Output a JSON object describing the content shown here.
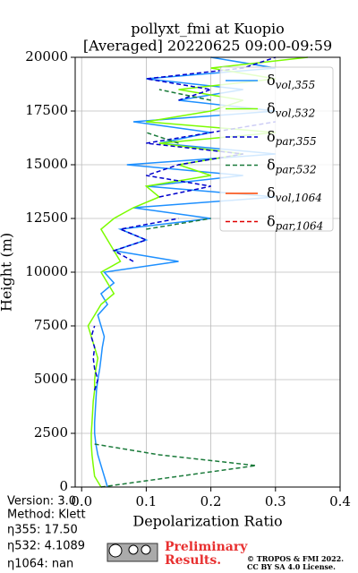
{
  "chart_data": {
    "type": "profile",
    "title": "pollyxt_fmi at Kuopio",
    "subtitle": "[Averaged] 20220625 09:00-09:59",
    "xlabel": "Depolarization Ratio",
    "ylabel": "Height (m)",
    "xlim": [
      -0.01,
      0.4
    ],
    "ylim": [
      0,
      20000
    ],
    "xticks": [
      {
        "value": 0,
        "label": "0.0"
      },
      0.1,
      0.2,
      0.3,
      0.4
    ],
    "yticks": [
      0,
      2500,
      5000,
      7500,
      10000,
      12500,
      15000,
      17500,
      20000
    ],
    "grid": true,
    "legend": "upper right",
    "heights": [
      0,
      500,
      1000,
      1500,
      2000,
      2500,
      3000,
      3500,
      4000,
      4500,
      5000,
      5500,
      6000,
      6500,
      7000,
      7500,
      8000,
      8500,
      9000,
      9500,
      10000,
      10500,
      11000,
      11500,
      12000,
      12500,
      13000,
      13500,
      14000,
      14500,
      15000,
      15500,
      16000,
      16500,
      17000,
      17500,
      18000,
      18500,
      19000,
      19500,
      20000
    ],
    "series": [
      {
        "name": "δvol,355",
        "color": "#1e90ff",
        "dash": false,
        "values": [
          0.04,
          0.035,
          0.03,
          0.025,
          0.022,
          0.02,
          0.02,
          0.021,
          0.022,
          0.023,
          0.025,
          0.028,
          0.03,
          0.032,
          0.035,
          0.03,
          0.025,
          0.04,
          0.03,
          0.05,
          0.035,
          0.15,
          0.05,
          0.1,
          0.06,
          0.2,
          0.08,
          0.3,
          0.1,
          0.25,
          0.07,
          0.3,
          0.12,
          0.2,
          0.08,
          0.3,
          0.15,
          0.25,
          0.1,
          0.3,
          0.2
        ]
      },
      {
        "name": "δvol,532",
        "color": "#7cfc00",
        "dash": false,
        "values": [
          0.03,
          0.02,
          0.018,
          0.016,
          0.015,
          0.015,
          0.016,
          0.017,
          0.018,
          0.02,
          0.02,
          0.022,
          0.025,
          0.02,
          0.015,
          0.01,
          0.02,
          0.03,
          0.05,
          0.04,
          0.03,
          0.06,
          0.05,
          0.04,
          0.03,
          0.05,
          0.08,
          0.12,
          0.1,
          0.2,
          0.15,
          0.25,
          0.12,
          0.3,
          0.1,
          0.2,
          0.25,
          0.15,
          0.3,
          0.2,
          0.35
        ]
      },
      {
        "name": "δpar,355",
        "color": "#0000cd",
        "dash": true,
        "values": [
          null,
          null,
          null,
          null,
          null,
          null,
          null,
          null,
          null,
          0.02,
          0.025,
          0.02,
          0.018,
          0.02,
          0.015,
          0.02,
          null,
          null,
          null,
          null,
          null,
          0.08,
          0.05,
          0.1,
          0.06,
          0.15,
          null,
          0.12,
          0.2,
          0.1,
          0.15,
          0.25,
          0.1,
          0.2,
          0.3,
          null,
          0.15,
          0.2,
          0.1,
          0.25,
          0.3
        ]
      },
      {
        "name": "δpar,532",
        "color": "#1a7a3a",
        "dash": true,
        "values": [
          0.03,
          0.15,
          0.27,
          0.12,
          0.02,
          null,
          null,
          null,
          null,
          null,
          null,
          null,
          null,
          null,
          null,
          null,
          null,
          null,
          null,
          null,
          null,
          null,
          null,
          null,
          0.1,
          0.2,
          null,
          null,
          null,
          null,
          null,
          null,
          0.15,
          0.1,
          null,
          null,
          0.2,
          0.12,
          null,
          0.25,
          null
        ]
      },
      {
        "name": "δvol,1064",
        "color": "#ff4500",
        "dash": false,
        "values": [
          null,
          null,
          null,
          null,
          null,
          null,
          null,
          null,
          null,
          null,
          null,
          null,
          null,
          null,
          null,
          null,
          null,
          null,
          null,
          null,
          null,
          null,
          null,
          null,
          null,
          null,
          null,
          null,
          null,
          null,
          null,
          null,
          null,
          null,
          null,
          null,
          null,
          null,
          null,
          null,
          null
        ]
      },
      {
        "name": "δpar,1064",
        "color": "#e00000",
        "dash": true,
        "values": [
          null,
          null,
          null,
          null,
          null,
          null,
          null,
          null,
          null,
          null,
          null,
          null,
          null,
          null,
          null,
          null,
          null,
          null,
          null,
          null,
          null,
          null,
          null,
          null,
          null,
          null,
          null,
          null,
          null,
          null,
          null,
          null,
          null,
          null,
          null,
          null,
          null,
          null,
          null,
          null,
          null
        ]
      }
    ]
  },
  "info": {
    "version": "Version: 3.0",
    "method": "Method: Klett",
    "eta355": "η355:  17.50",
    "eta532": "η532: 4.1089",
    "eta1064": "η1064:    nan"
  },
  "footer": {
    "preliminary": "Preliminary",
    "results": "Results.",
    "copyright": "© TROPOS & FMI 2022.",
    "license": "CC BY SA 4.0 License."
  }
}
